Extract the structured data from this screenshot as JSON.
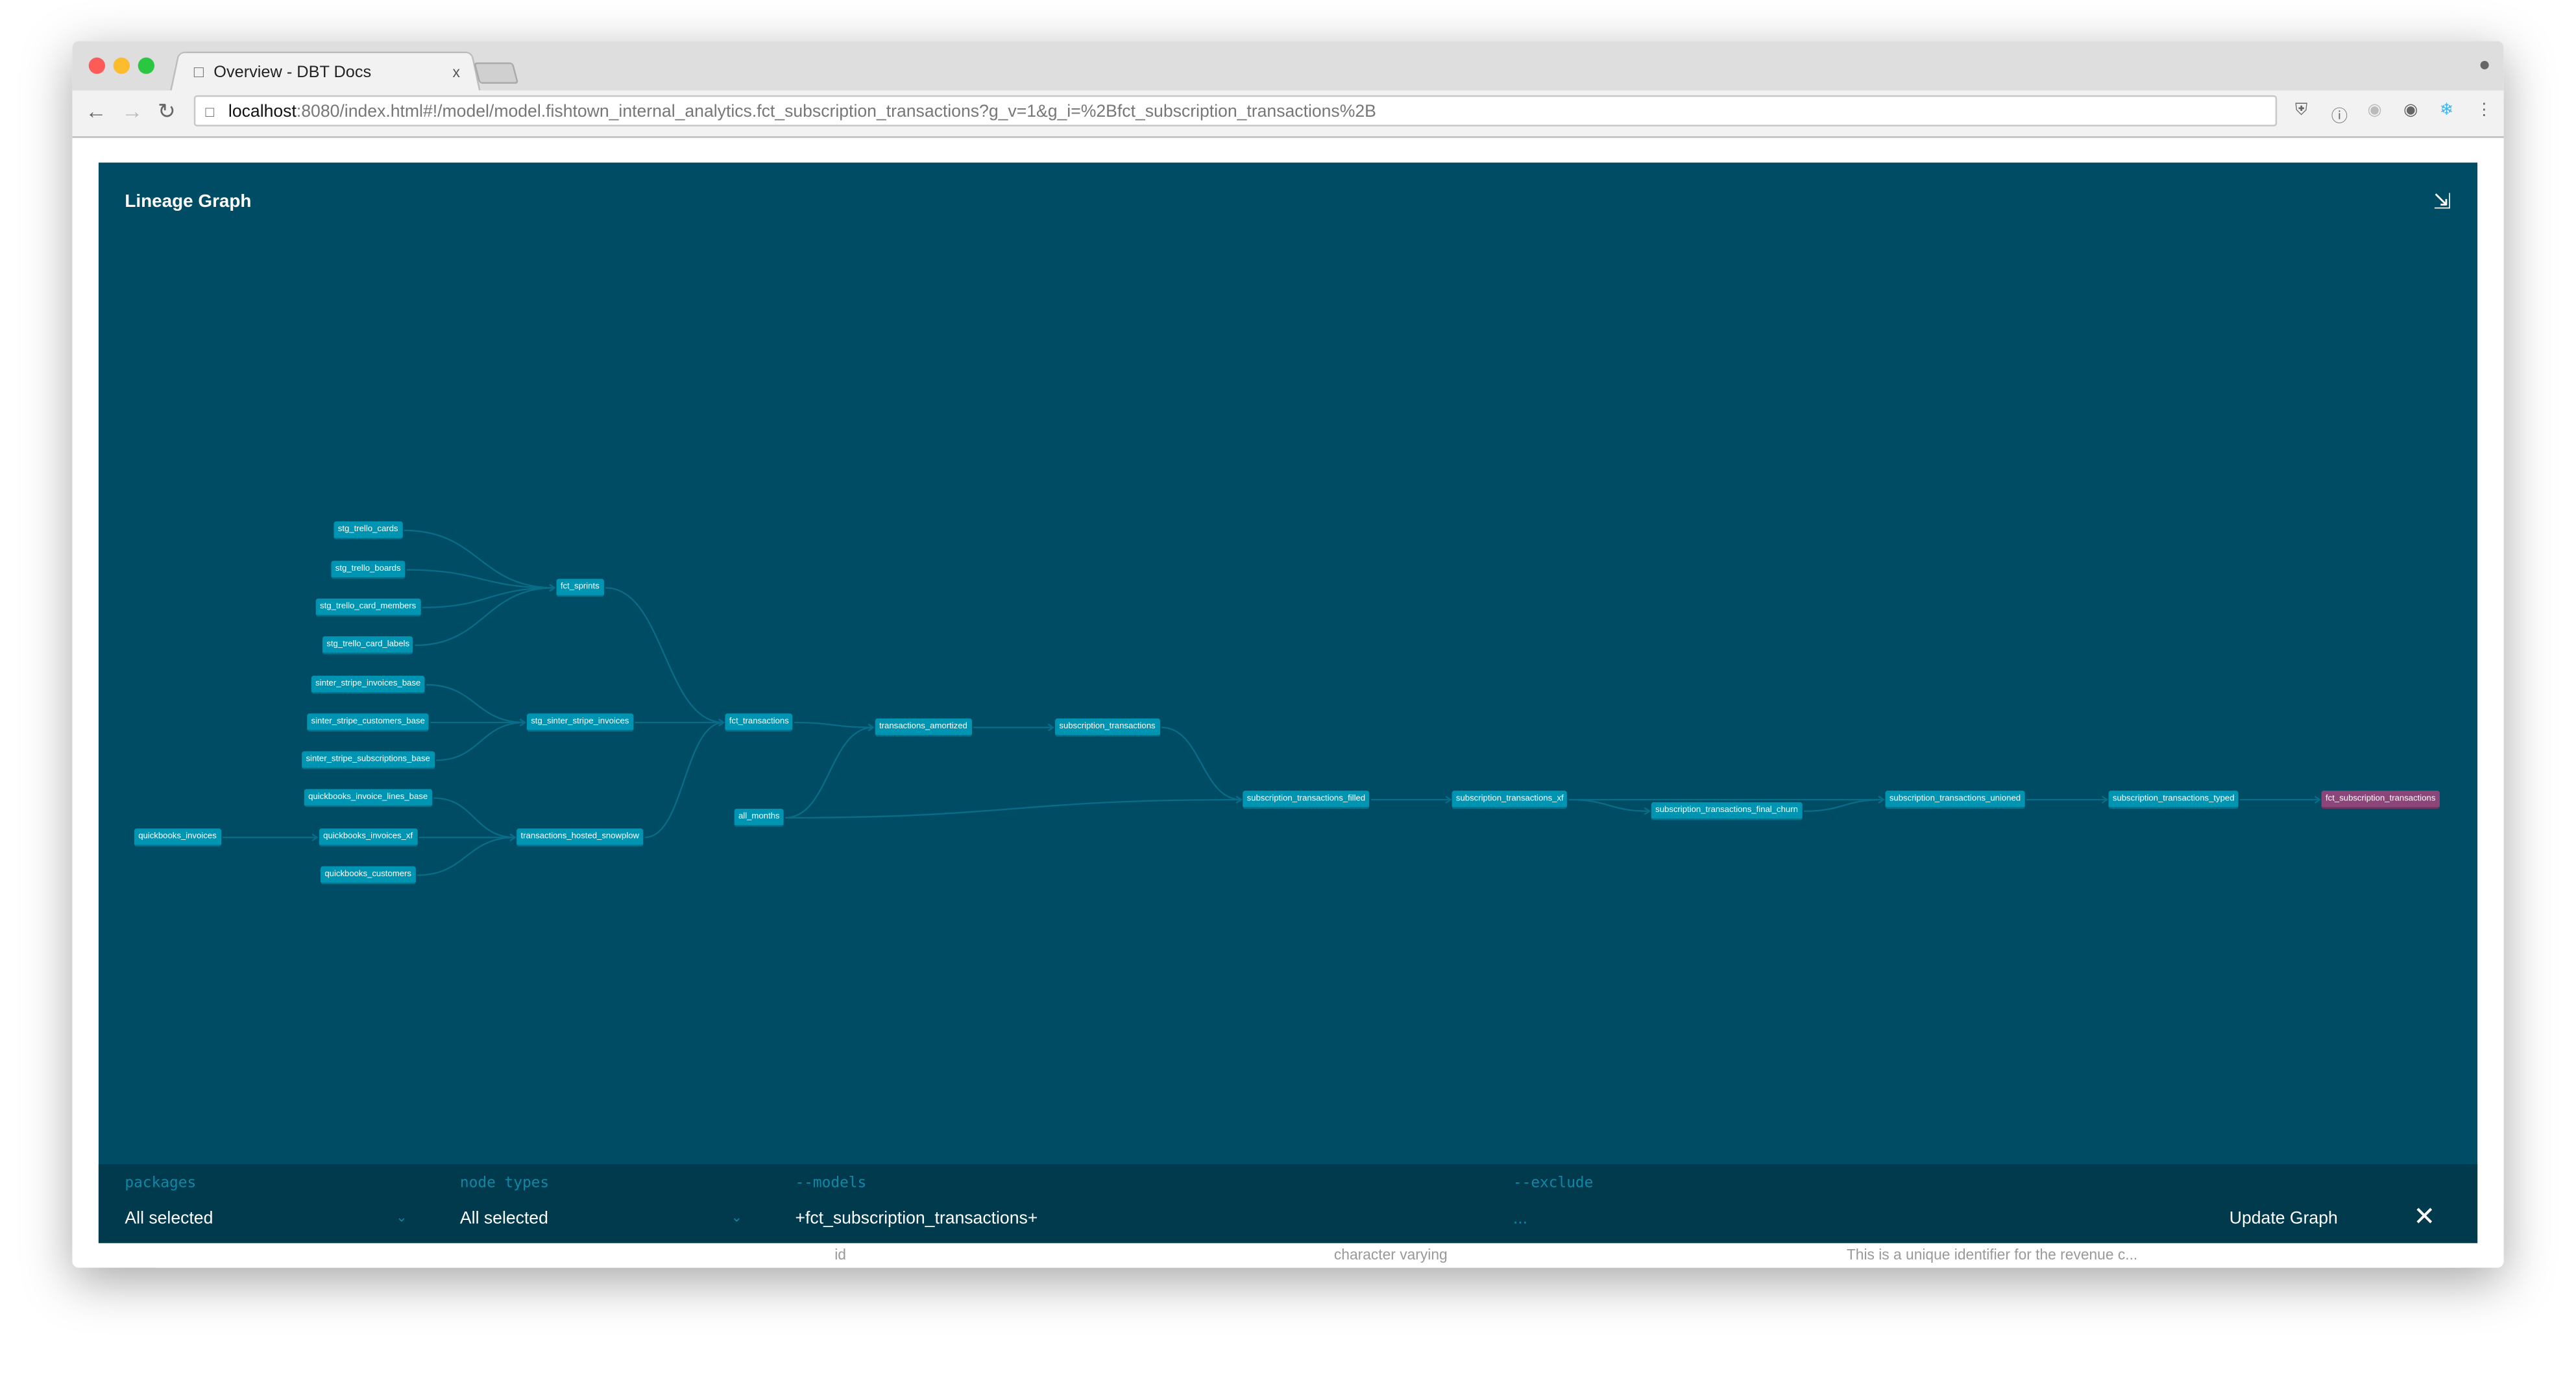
{
  "browser": {
    "tab_title": "Overview - DBT Docs",
    "tab_close": "x",
    "url_host": "localhost",
    "url_rest": ":8080/index.html#!/model/model.fishtown_internal_analytics.fct_subscription_transactions?g_v=1&g_i=%2Bfct_subscription_transactions%2B"
  },
  "background_page": {
    "column_name": "id",
    "column_type": "character varying",
    "column_description": "This is a unique identifier for the revenue c..."
  },
  "modal": {
    "title": "Lineage Graph",
    "node_color": "#0094b3",
    "selected_node_color": "#8b4579",
    "background_color": "#004c64"
  },
  "graph": {
    "nodes": [
      "stg_trello_cards",
      "stg_trello_boards",
      "stg_trello_card_members",
      "stg_trello_card_labels",
      "sinter_stripe_invoices_base",
      "sinter_stripe_customers_base",
      "sinter_stripe_subscriptions_base",
      "quickbooks_invoice_lines_base",
      "quickbooks_invoices_xf",
      "quickbooks_customers",
      "quickbooks_invoices",
      "fct_sprints",
      "stg_sinter_stripe_invoices",
      "transactions_hosted_snowplow",
      "fct_transactions",
      "all_months",
      "transactions_amortized",
      "subscription_transactions",
      "subscription_transactions_filled",
      "subscription_transactions_xf",
      "subscription_transactions_final_churn",
      "subscription_transactions_unioned",
      "subscription_transactions_typed",
      "fct_subscription_transactions"
    ],
    "selected": "fct_subscription_transactions",
    "edges": [
      [
        "stg_trello_cards",
        "fct_sprints"
      ],
      [
        "stg_trello_boards",
        "fct_sprints"
      ],
      [
        "stg_trello_card_members",
        "fct_sprints"
      ],
      [
        "stg_trello_card_labels",
        "fct_sprints"
      ],
      [
        "sinter_stripe_invoices_base",
        "stg_sinter_stripe_invoices"
      ],
      [
        "sinter_stripe_customers_base",
        "stg_sinter_stripe_invoices"
      ],
      [
        "sinter_stripe_subscriptions_base",
        "stg_sinter_stripe_invoices"
      ],
      [
        "quickbooks_invoice_lines_base",
        "transactions_hosted_snowplow"
      ],
      [
        "quickbooks_invoices_xf",
        "transactions_hosted_snowplow"
      ],
      [
        "quickbooks_customers",
        "transactions_hosted_snowplow"
      ],
      [
        "quickbooks_invoices",
        "quickbooks_invoices_xf"
      ],
      [
        "fct_sprints",
        "fct_transactions"
      ],
      [
        "stg_sinter_stripe_invoices",
        "fct_transactions"
      ],
      [
        "transactions_hosted_snowplow",
        "fct_transactions"
      ],
      [
        "fct_transactions",
        "transactions_amortized"
      ],
      [
        "all_months",
        "transactions_amortized"
      ],
      [
        "transactions_amortized",
        "subscription_transactions"
      ],
      [
        "subscription_transactions",
        "subscription_transactions_filled"
      ],
      [
        "all_months",
        "subscription_transactions_filled"
      ],
      [
        "subscription_transactions_filled",
        "subscription_transactions_xf"
      ],
      [
        "subscription_transactions_xf",
        "subscription_transactions_final_churn"
      ],
      [
        "subscription_transactions_xf",
        "subscription_transactions_unioned"
      ],
      [
        "subscription_transactions_final_churn",
        "subscription_transactions_unioned"
      ],
      [
        "subscription_transactions_unioned",
        "subscription_transactions_typed"
      ],
      [
        "subscription_transactions_typed",
        "fct_subscription_transactions"
      ]
    ]
  },
  "filters": {
    "packages": {
      "label": "packages",
      "value": "All selected"
    },
    "node_types": {
      "label": "node types",
      "value": "All selected"
    },
    "models": {
      "label": "--models",
      "value": "+fct_subscription_transactions+"
    },
    "exclude": {
      "label": "--exclude",
      "placeholder": "..."
    },
    "update_button": "Update Graph"
  }
}
